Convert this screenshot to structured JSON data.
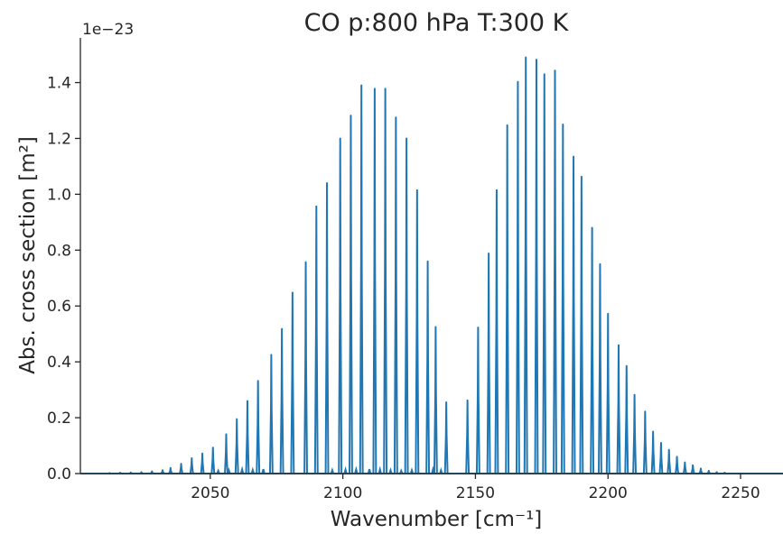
{
  "chart_data": {
    "type": "line",
    "title": "CO p:800 hPa T:300 K",
    "xlabel": "Wavenumber [cm⁻¹]",
    "ylabel": "Abs. cross section [m²]",
    "y_offset_label": "1e−23",
    "xlim": [
      2001,
      2266
    ],
    "ylim": [
      0,
      1.56
    ],
    "x_ticks": [
      2050,
      2100,
      2150,
      2200,
      2250
    ],
    "x_tick_labels": [
      "2050",
      "2100",
      "2150",
      "2200",
      "2250"
    ],
    "y_ticks": [
      0.0,
      0.2,
      0.4,
      0.6,
      0.8,
      1.0,
      1.2,
      1.4
    ],
    "y_tick_labels": [
      "0.0",
      "0.2",
      "0.4",
      "0.6",
      "0.8",
      "1.0",
      "1.2",
      "1.4"
    ],
    "grid": false,
    "line_color": "#1f77b4",
    "series": [
      {
        "lines": [
          {
            "x": 2012.0,
            "y": 0.002
          },
          {
            "x": 2016.0,
            "y": 0.003
          },
          {
            "x": 2020.0,
            "y": 0.004
          },
          {
            "x": 2024.0,
            "y": 0.005
          },
          {
            "x": 2028.0,
            "y": 0.008
          },
          {
            "x": 2032.0,
            "y": 0.012
          },
          {
            "x": 2035.0,
            "y": 0.02
          },
          {
            "x": 2039.0,
            "y": 0.035
          },
          {
            "x": 2043.0,
            "y": 0.055
          },
          {
            "x": 2047.0,
            "y": 0.072
          },
          {
            "x": 2051.0,
            "y": 0.093
          },
          {
            "x": 2056.0,
            "y": 0.141
          },
          {
            "x": 2060.0,
            "y": 0.195
          },
          {
            "x": 2064.0,
            "y": 0.26
          },
          {
            "x": 2068.0,
            "y": 0.332
          },
          {
            "x": 2073.0,
            "y": 0.425
          },
          {
            "x": 2077.0,
            "y": 0.518
          },
          {
            "x": 2081.0,
            "y": 0.648
          },
          {
            "x": 2086.0,
            "y": 0.757
          },
          {
            "x": 2090.0,
            "y": 0.957
          },
          {
            "x": 2094.0,
            "y": 1.04
          },
          {
            "x": 2099.0,
            "y": 1.2
          },
          {
            "x": 2103.0,
            "y": 1.282
          },
          {
            "x": 2107.0,
            "y": 1.39
          },
          {
            "x": 2112.0,
            "y": 1.378
          },
          {
            "x": 2116.0,
            "y": 1.378
          },
          {
            "x": 2120.0,
            "y": 1.275
          },
          {
            "x": 2124.0,
            "y": 1.2
          },
          {
            "x": 2128.0,
            "y": 1.015
          },
          {
            "x": 2132.0,
            "y": 0.76
          },
          {
            "x": 2135.0,
            "y": 0.525
          },
          {
            "x": 2139.0,
            "y": 0.255
          },
          {
            "x": 2147.0,
            "y": 0.262
          },
          {
            "x": 2151.0,
            "y": 0.523
          },
          {
            "x": 2155.0,
            "y": 0.788
          },
          {
            "x": 2158.0,
            "y": 1.015
          },
          {
            "x": 2162.0,
            "y": 1.247
          },
          {
            "x": 2166.0,
            "y": 1.403
          },
          {
            "x": 2169.0,
            "y": 1.49
          },
          {
            "x": 2173.0,
            "y": 1.482
          },
          {
            "x": 2176.0,
            "y": 1.43
          },
          {
            "x": 2180.0,
            "y": 1.443
          },
          {
            "x": 2183.0,
            "y": 1.25
          },
          {
            "x": 2187.0,
            "y": 1.135
          },
          {
            "x": 2190.0,
            "y": 1.063
          },
          {
            "x": 2194.0,
            "y": 0.88
          },
          {
            "x": 2197.0,
            "y": 0.75
          },
          {
            "x": 2200.0,
            "y": 0.572
          },
          {
            "x": 2204.0,
            "y": 0.46
          },
          {
            "x": 2207.0,
            "y": 0.385
          },
          {
            "x": 2210.0,
            "y": 0.282
          },
          {
            "x": 2214.0,
            "y": 0.222
          },
          {
            "x": 2217.0,
            "y": 0.15
          },
          {
            "x": 2220.0,
            "y": 0.11
          },
          {
            "x": 2223.0,
            "y": 0.085
          },
          {
            "x": 2226.0,
            "y": 0.06
          },
          {
            "x": 2229.0,
            "y": 0.04
          },
          {
            "x": 2232.0,
            "y": 0.03
          },
          {
            "x": 2235.0,
            "y": 0.018
          },
          {
            "x": 2238.0,
            "y": 0.01
          },
          {
            "x": 2241.0,
            "y": 0.005
          },
          {
            "x": 2244.0,
            "y": 0.003
          }
        ],
        "weak_lines": [
          {
            "x": 2053.0,
            "y": 0.01
          },
          {
            "x": 2057.0,
            "y": 0.012
          },
          {
            "x": 2062.0,
            "y": 0.015
          },
          {
            "x": 2066.0,
            "y": 0.013
          },
          {
            "x": 2070.0,
            "y": 0.016
          },
          {
            "x": 2096.0,
            "y": 0.012
          },
          {
            "x": 2101.0,
            "y": 0.014
          },
          {
            "x": 2105.0,
            "y": 0.015
          },
          {
            "x": 2110.0,
            "y": 0.016
          },
          {
            "x": 2114.0,
            "y": 0.015
          },
          {
            "x": 2118.0,
            "y": 0.012
          },
          {
            "x": 2122.0,
            "y": 0.01
          },
          {
            "x": 2126.0,
            "y": 0.012
          },
          {
            "x": 2134.0,
            "y": 0.015
          },
          {
            "x": 2137.0,
            "y": 0.012
          }
        ]
      }
    ]
  }
}
